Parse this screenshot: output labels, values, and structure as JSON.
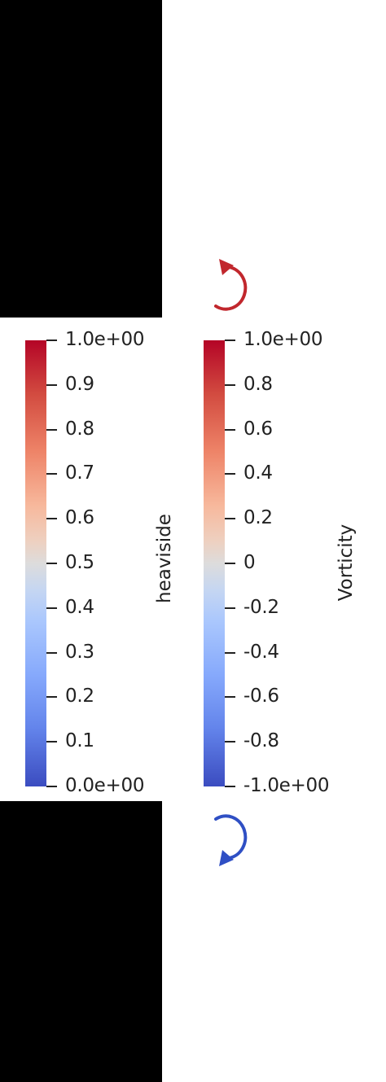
{
  "colors": {
    "high": "#b40426",
    "mid": "#dddcdc",
    "low": "#3b4cc0"
  },
  "colorbars": {
    "heaviside": {
      "title": "heaviside",
      "ticks": [
        "1.0e+00",
        "0.9",
        "0.8",
        "0.7",
        "0.6",
        "0.5",
        "0.4",
        "0.3",
        "0.2",
        "0.1",
        "0.0e+00"
      ]
    },
    "vorticity": {
      "title": "Vorticity",
      "ticks": [
        "1.0e+00",
        "0.8",
        "0.6",
        "0.4",
        "0.2",
        "0",
        "-0.2",
        "-0.4",
        "-0.6",
        "-0.8",
        "-1.0e+00"
      ]
    }
  },
  "icons": {
    "top": "counterclockwise-rotation-arrow-icon",
    "bottom": "clockwise-rotation-arrow-icon"
  }
}
